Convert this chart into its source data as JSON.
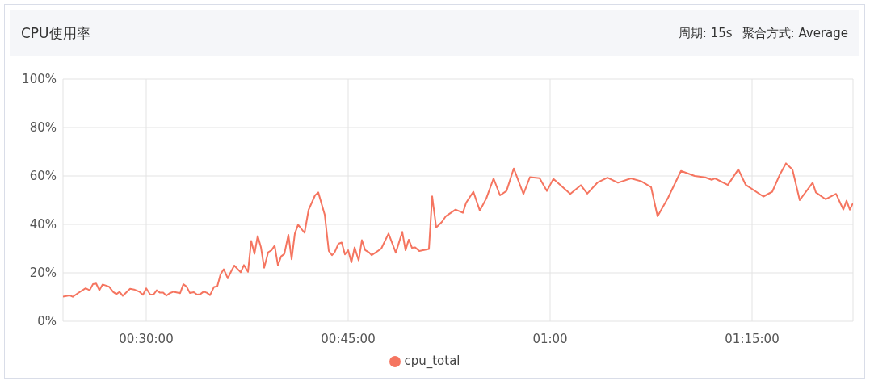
{
  "chart_data": {
    "type": "line",
    "title": "CPU使用率",
    "annotations": [
      "周期: 15s",
      "聚合方式: Average"
    ],
    "x": [
      0.397,
      0.405,
      0.409,
      0.415,
      0.425,
      0.43,
      0.434,
      0.438,
      0.442,
      0.446,
      0.454,
      0.459,
      0.463,
      0.467,
      0.471,
      0.48,
      0.485,
      0.492,
      0.496,
      0.5,
      0.505,
      0.509,
      0.513,
      0.517,
      0.521,
      0.525,
      0.529,
      0.534,
      0.542,
      0.546,
      0.55,
      0.554,
      0.559,
      0.563,
      0.567,
      0.571,
      0.575,
      0.579,
      0.584,
      0.588,
      0.592,
      0.596,
      0.601,
      0.605,
      0.609,
      0.617,
      0.621,
      0.626,
      0.63,
      0.634,
      0.638,
      0.642,
      0.646,
      0.651,
      0.655,
      0.659,
      0.663,
      0.667,
      0.671,
      0.676,
      0.68,
      0.684,
      0.688,
      0.696,
      0.701,
      0.709,
      0.713,
      0.721,
      0.726,
      0.73,
      0.733,
      0.738,
      0.742,
      0.746,
      0.75,
      0.754,
      0.758,
      0.763,
      0.767,
      0.771,
      0.776,
      0.779,
      0.784,
      0.791,
      0.8,
      0.809,
      0.817,
      0.821,
      0.825,
      0.829,
      0.833,
      0.838,
      0.85,
      0.854,
      0.859,
      0.866,
      0.871,
      0.883,
      0.892,
      0.896,
      0.905,
      0.913,
      0.921,
      0.93,
      0.938,
      0.946,
      0.955,
      0.967,
      0.975,
      0.987,
      0.996,
      1.004,
      1.025,
      1.038,
      1.046,
      1.059,
      1.071,
      1.084,
      1.1,
      1.113,
      1.125,
      1.133,
      1.146,
      1.162,
      1.179,
      1.192,
      1.2,
      1.204,
      1.22,
      1.233,
      1.242,
      1.264,
      1.275,
      1.284,
      1.292,
      1.3,
      1.309,
      1.325,
      1.329,
      1.341,
      1.354,
      1.363,
      1.367,
      1.371,
      1.375
    ],
    "series": [
      {
        "name": "cpu_total",
        "color": "#f57560",
        "values": [
          10.2,
          10.7,
          10.1,
          11.5,
          13.6,
          12.8,
          15.3,
          15.6,
          12.8,
          15.2,
          14.3,
          12.1,
          11.2,
          12.1,
          10.5,
          13.4,
          13.1,
          12.1,
          10.9,
          13.6,
          11.0,
          11.0,
          12.8,
          11.8,
          11.8,
          10.6,
          11.6,
          12.2,
          11.6,
          15.3,
          14.3,
          11.7,
          12.0,
          11.0,
          11.2,
          12.2,
          11.8,
          10.8,
          14.2,
          14.4,
          19.3,
          21.5,
          17.7,
          20.5,
          23.0,
          20.2,
          23.2,
          20.4,
          33.2,
          27.8,
          35.2,
          30.6,
          22.1,
          28.5,
          29.3,
          31.2,
          23.1,
          26.8,
          27.8,
          35.7,
          25.6,
          36.2,
          39.9,
          36.5,
          46.0,
          52.0,
          53.2,
          44.0,
          29.0,
          27.3,
          28.3,
          32.0,
          32.5,
          27.6,
          29.3,
          24.3,
          30.5,
          25.1,
          33.5,
          29.4,
          28.4,
          27.3,
          28.4,
          30.0,
          36.2,
          28.3,
          36.9,
          29.3,
          33.7,
          30.3,
          30.5,
          29.0,
          29.8,
          51.6,
          38.7,
          41.0,
          43.4,
          46.1,
          44.8,
          48.9,
          53.5,
          45.7,
          50.7,
          59.0,
          52.0,
          53.8,
          63.1,
          52.5,
          59.5,
          59.1,
          53.8,
          58.8,
          52.6,
          56.2,
          52.7,
          57.4,
          59.3,
          57.2,
          59.0,
          57.8,
          55.4,
          43.3,
          51.0,
          62.1,
          60.0,
          59.4,
          58.4,
          59.0,
          56.3,
          62.7,
          56.4,
          51.5,
          53.5,
          60.3,
          65.2,
          62.7,
          50.0,
          57.2,
          53.2,
          50.4,
          52.6,
          46.1,
          49.8,
          46.1,
          48.8
        ]
      }
    ],
    "xlim": [
      0.397,
      1.375
    ],
    "xticks": [
      {
        "value": 0.5,
        "label": "00:30:00"
      },
      {
        "value": 0.75,
        "label": "00:45:00"
      },
      {
        "value": 1.0,
        "label": "01:00"
      },
      {
        "value": 1.25,
        "label": "01:15:00"
      }
    ],
    "ylim": [
      0,
      100
    ],
    "yticks": [
      {
        "value": 0,
        "label": "0%"
      },
      {
        "value": 20,
        "label": "20%"
      },
      {
        "value": 40,
        "label": "40%"
      },
      {
        "value": 60,
        "label": "60%"
      },
      {
        "value": 80,
        "label": "80%"
      },
      {
        "value": 100,
        "label": "100%"
      }
    ],
    "grid": true,
    "legend": "bottom",
    "marker": "none",
    "line_style": "solid"
  }
}
